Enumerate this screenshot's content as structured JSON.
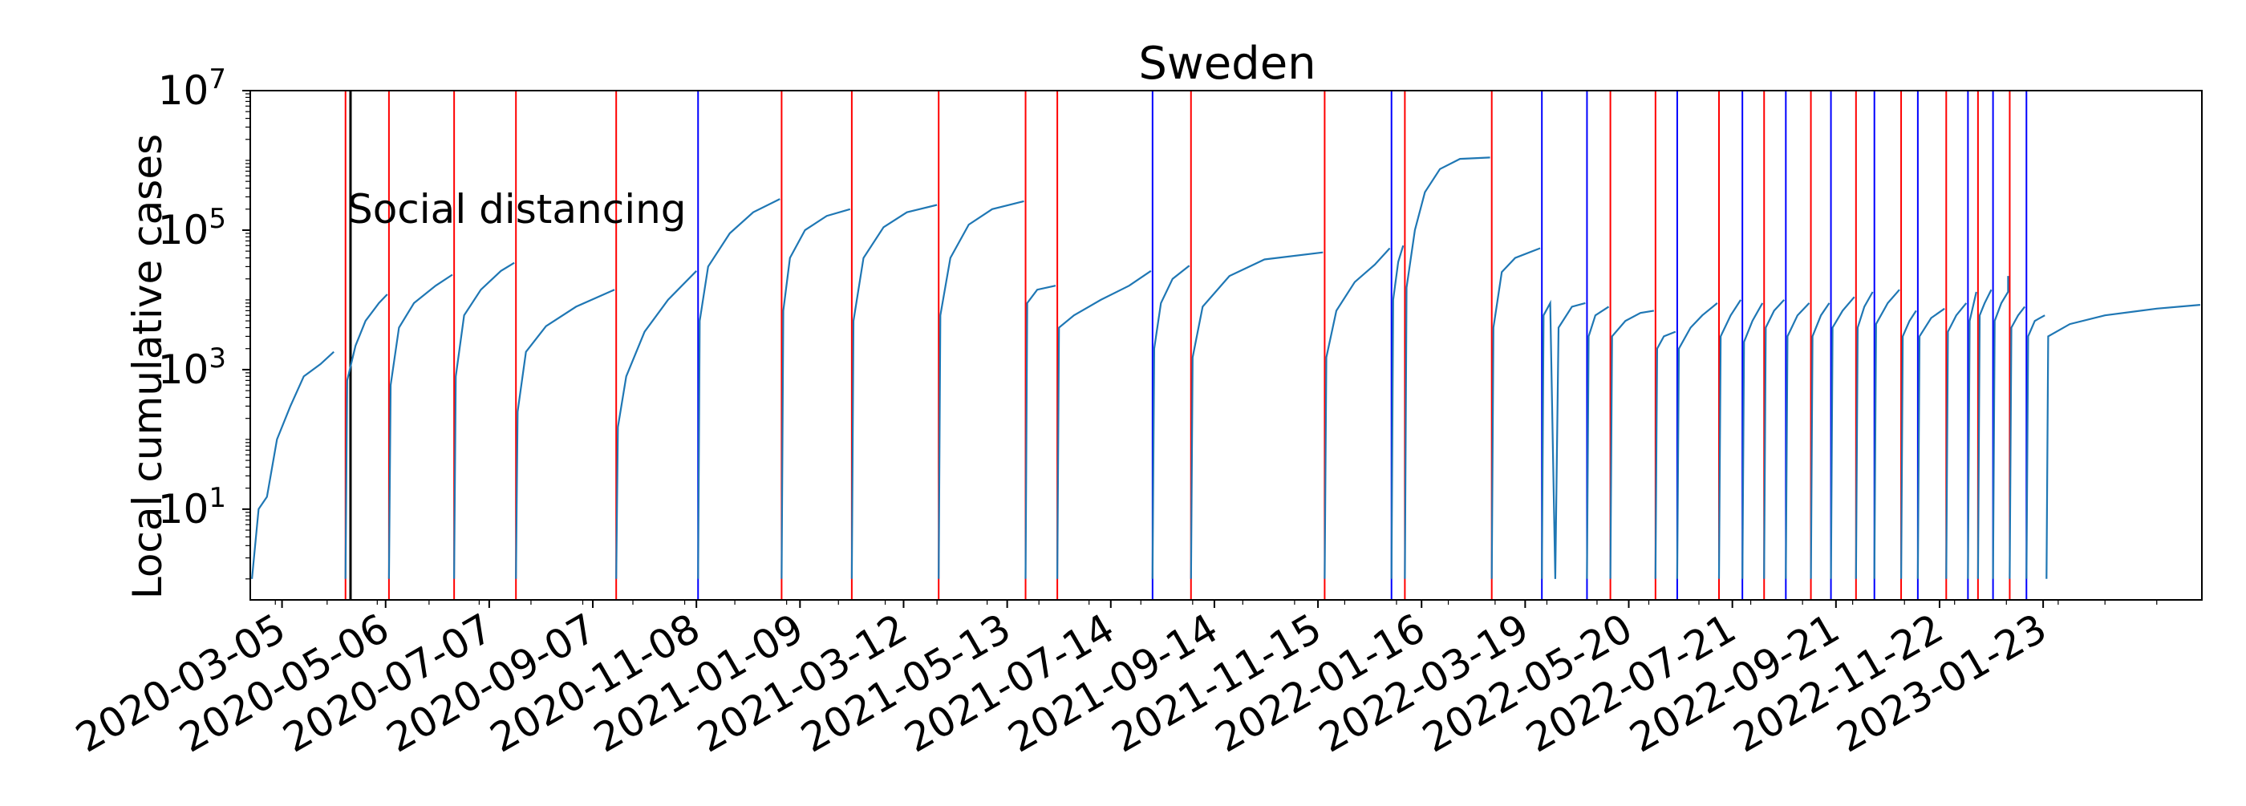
{
  "chart_data": {
    "type": "line",
    "title": "Sweden",
    "xlabel": "",
    "ylabel": "Local cumulative cases",
    "yscale": "log",
    "ylim": [
      0.5,
      10000000
    ],
    "xlim": [
      "2020-02-15",
      "2023-04-28"
    ],
    "y_ticks": [
      {
        "value": 10,
        "base": "10",
        "exp": "1"
      },
      {
        "value": 1000,
        "base": "10",
        "exp": "3"
      },
      {
        "value": 100000,
        "base": "10",
        "exp": "5"
      },
      {
        "value": 10000000,
        "base": "10",
        "exp": "7"
      }
    ],
    "x_tick_labels": [
      "2020-03-05",
      "2020-05-06",
      "2020-07-07",
      "2020-09-07",
      "2020-11-08",
      "2021-01-09",
      "2021-03-12",
      "2021-05-13",
      "2021-07-14",
      "2021-09-14",
      "2021-11-15",
      "2022-01-16",
      "2022-03-19",
      "2022-05-20",
      "2022-07-21",
      "2022-09-21",
      "2022-11-22",
      "2023-01-23"
    ],
    "grid": false,
    "annotations": [
      {
        "text": "Social distancing",
        "date": "2020-04-15",
        "color": "#000000"
      }
    ],
    "colors": {
      "series": "#1f77b4",
      "red_line": "#ff0000",
      "blue_line": "#0000ff",
      "event_line": "#000000"
    },
    "red_lines": [
      "2020-04-12",
      "2020-05-08",
      "2020-06-16",
      "2020-07-23",
      "2020-09-21",
      "2020-12-29",
      "2021-02-09",
      "2021-04-02",
      "2021-05-24",
      "2021-06-12",
      "2021-08-31",
      "2021-11-19",
      "2022-01-06",
      "2022-02-27",
      "2022-05-09",
      "2022-06-05",
      "2022-07-13",
      "2022-08-09",
      "2022-09-06",
      "2022-10-03",
      "2022-10-30",
      "2022-11-26",
      "2022-12-15",
      "2023-01-03"
    ],
    "blue_lines": [
      "2020-11-09",
      "2021-08-08",
      "2021-12-29",
      "2022-03-29",
      "2022-04-25",
      "2022-06-18",
      "2022-07-27",
      "2022-08-22",
      "2022-09-18",
      "2022-10-14",
      "2022-11-09",
      "2022-12-09",
      "2022-12-24",
      "2023-01-13"
    ],
    "event_lines": [
      "2020-04-15"
    ],
    "segments": [
      {
        "points": [
          [
            "2020-02-16",
            1
          ],
          [
            "2020-02-20",
            10
          ],
          [
            "2020-02-25",
            15
          ],
          [
            "2020-03-02",
            100
          ],
          [
            "2020-03-10",
            300
          ],
          [
            "2020-03-18",
            800
          ],
          [
            "2020-03-28",
            1200
          ],
          [
            "2020-04-05",
            1800
          ]
        ]
      },
      {
        "points": [
          [
            "2020-04-12",
            1
          ],
          [
            "2020-04-13",
            700
          ],
          [
            "2020-04-18",
            2200
          ],
          [
            "2020-04-24",
            5000
          ],
          [
            "2020-05-02",
            9000
          ],
          [
            "2020-05-07",
            12000
          ]
        ]
      },
      {
        "points": [
          [
            "2020-05-08",
            1
          ],
          [
            "2020-05-09",
            600
          ],
          [
            "2020-05-14",
            4000
          ],
          [
            "2020-05-23",
            9000
          ],
          [
            "2020-06-05",
            16000
          ],
          [
            "2020-06-15",
            23000
          ]
        ]
      },
      {
        "points": [
          [
            "2020-06-16",
            1
          ],
          [
            "2020-06-17",
            800
          ],
          [
            "2020-06-22",
            6000
          ],
          [
            "2020-07-02",
            14000
          ],
          [
            "2020-07-14",
            26000
          ],
          [
            "2020-07-22",
            34000
          ]
        ]
      },
      {
        "points": [
          [
            "2020-07-23",
            1
          ],
          [
            "2020-07-24",
            250
          ],
          [
            "2020-07-29",
            1800
          ],
          [
            "2020-08-10",
            4200
          ],
          [
            "2020-08-28",
            8000
          ],
          [
            "2020-09-20",
            14000
          ]
        ]
      },
      {
        "points": [
          [
            "2020-09-21",
            1
          ],
          [
            "2020-09-22",
            150
          ],
          [
            "2020-09-27",
            800
          ],
          [
            "2020-10-08",
            3500
          ],
          [
            "2020-10-22",
            10000
          ],
          [
            "2020-11-08",
            26000
          ]
        ]
      },
      {
        "points": [
          [
            "2020-11-09",
            1
          ],
          [
            "2020-11-10",
            5000
          ],
          [
            "2020-11-15",
            30000
          ],
          [
            "2020-11-28",
            90000
          ],
          [
            "2020-12-12",
            180000
          ],
          [
            "2020-12-28",
            280000
          ]
        ]
      },
      {
        "points": [
          [
            "2020-12-29",
            1
          ],
          [
            "2020-12-30",
            7000
          ],
          [
            "2021-01-03",
            40000
          ],
          [
            "2021-01-12",
            100000
          ],
          [
            "2021-01-25",
            160000
          ],
          [
            "2021-02-08",
            200000
          ]
        ]
      },
      {
        "points": [
          [
            "2021-02-09",
            1
          ],
          [
            "2021-02-10",
            5000
          ],
          [
            "2021-02-16",
            40000
          ],
          [
            "2021-02-28",
            110000
          ],
          [
            "2021-03-14",
            180000
          ],
          [
            "2021-04-01",
            230000
          ]
        ]
      },
      {
        "points": [
          [
            "2021-04-02",
            1
          ],
          [
            "2021-04-03",
            6000
          ],
          [
            "2021-04-09",
            40000
          ],
          [
            "2021-04-20",
            120000
          ],
          [
            "2021-05-04",
            200000
          ],
          [
            "2021-05-23",
            260000
          ]
        ]
      },
      {
        "points": [
          [
            "2021-05-24",
            1
          ],
          [
            "2021-05-25",
            9000
          ],
          [
            "2021-05-31",
            14000
          ],
          [
            "2021-06-11",
            16000
          ]
        ]
      },
      {
        "points": [
          [
            "2021-06-12",
            1
          ],
          [
            "2021-06-13",
            4000
          ],
          [
            "2021-06-22",
            6000
          ],
          [
            "2021-07-08",
            10000
          ],
          [
            "2021-07-25",
            16000
          ],
          [
            "2021-08-07",
            26000
          ]
        ]
      },
      {
        "points": [
          [
            "2021-08-08",
            1
          ],
          [
            "2021-08-09",
            2000
          ],
          [
            "2021-08-13",
            9000
          ],
          [
            "2021-08-20",
            20000
          ],
          [
            "2021-08-30",
            31000
          ]
        ]
      },
      {
        "points": [
          [
            "2021-08-31",
            1
          ],
          [
            "2021-09-01",
            1500
          ],
          [
            "2021-09-07",
            8000
          ],
          [
            "2021-09-23",
            22000
          ],
          [
            "2021-10-14",
            38000
          ],
          [
            "2021-11-18",
            48000
          ]
        ]
      },
      {
        "points": [
          [
            "2021-11-19",
            1
          ],
          [
            "2021-11-20",
            1500
          ],
          [
            "2021-11-26",
            7000
          ],
          [
            "2021-12-07",
            18000
          ],
          [
            "2021-12-19",
            32000
          ],
          [
            "2021-12-28",
            55000
          ]
        ]
      },
      {
        "points": [
          [
            "2021-12-29",
            1
          ],
          [
            "2021-12-30",
            10000
          ],
          [
            "2022-01-02",
            35000
          ],
          [
            "2022-01-05",
            60000
          ]
        ]
      },
      {
        "points": [
          [
            "2022-01-06",
            1
          ],
          [
            "2022-01-07",
            15000
          ],
          [
            "2022-01-12",
            100000
          ],
          [
            "2022-01-18",
            350000
          ],
          [
            "2022-01-27",
            750000
          ],
          [
            "2022-02-08",
            1050000
          ],
          [
            "2022-02-26",
            1100000
          ]
        ]
      },
      {
        "points": [
          [
            "2022-02-27",
            1
          ],
          [
            "2022-02-28",
            4000
          ],
          [
            "2022-03-05",
            25000
          ],
          [
            "2022-03-13",
            40000
          ],
          [
            "2022-03-28",
            55000
          ]
        ]
      },
      {
        "points": [
          [
            "2022-03-29",
            1
          ],
          [
            "2022-03-30",
            6000
          ],
          [
            "2022-04-03",
            9000
          ],
          [
            "2022-04-06",
            1
          ],
          [
            "2022-04-08",
            4000
          ],
          [
            "2022-04-16",
            8000
          ],
          [
            "2022-04-24",
            9000
          ]
        ]
      },
      {
        "points": [
          [
            "2022-04-25",
            1
          ],
          [
            "2022-04-26",
            3000
          ],
          [
            "2022-04-30",
            6000
          ],
          [
            "2022-05-08",
            8000
          ]
        ]
      },
      {
        "points": [
          [
            "2022-05-09",
            1
          ],
          [
            "2022-05-10",
            3000
          ],
          [
            "2022-05-18",
            5000
          ],
          [
            "2022-05-27",
            6500
          ],
          [
            "2022-06-04",
            7000
          ]
        ]
      },
      {
        "points": [
          [
            "2022-06-05",
            1
          ],
          [
            "2022-06-06",
            2000
          ],
          [
            "2022-06-10",
            3000
          ],
          [
            "2022-06-17",
            3500
          ]
        ]
      },
      {
        "points": [
          [
            "2022-06-18",
            1
          ],
          [
            "2022-06-19",
            2000
          ],
          [
            "2022-06-26",
            4000
          ],
          [
            "2022-07-03",
            6000
          ],
          [
            "2022-07-12",
            9000
          ]
        ]
      },
      {
        "points": [
          [
            "2022-07-13",
            1
          ],
          [
            "2022-07-14",
            3000
          ],
          [
            "2022-07-20",
            6000
          ],
          [
            "2022-07-26",
            10000
          ]
        ]
      },
      {
        "points": [
          [
            "2022-07-27",
            1
          ],
          [
            "2022-07-28",
            2500
          ],
          [
            "2022-08-02",
            5000
          ],
          [
            "2022-08-08",
            9000
          ]
        ]
      },
      {
        "points": [
          [
            "2022-08-09",
            1
          ],
          [
            "2022-08-10",
            4000
          ],
          [
            "2022-08-15",
            7000
          ],
          [
            "2022-08-21",
            10000
          ]
        ]
      },
      {
        "points": [
          [
            "2022-08-22",
            1
          ],
          [
            "2022-08-23",
            3000
          ],
          [
            "2022-08-29",
            6000
          ],
          [
            "2022-09-05",
            9000
          ]
        ]
      },
      {
        "points": [
          [
            "2022-09-06",
            1
          ],
          [
            "2022-09-07",
            3000
          ],
          [
            "2022-09-12",
            6000
          ],
          [
            "2022-09-17",
            9000
          ]
        ]
      },
      {
        "points": [
          [
            "2022-09-18",
            1
          ],
          [
            "2022-09-19",
            4000
          ],
          [
            "2022-09-25",
            7000
          ],
          [
            "2022-10-02",
            11000
          ]
        ]
      },
      {
        "points": [
          [
            "2022-10-03",
            1
          ],
          [
            "2022-10-04",
            4000
          ],
          [
            "2022-10-08",
            8000
          ],
          [
            "2022-10-13",
            13000
          ]
        ]
      },
      {
        "points": [
          [
            "2022-10-14",
            1
          ],
          [
            "2022-10-15",
            4500
          ],
          [
            "2022-10-22",
            9000
          ],
          [
            "2022-10-29",
            14000
          ]
        ]
      },
      {
        "points": [
          [
            "2022-10-30",
            1
          ],
          [
            "2022-10-31",
            3000
          ],
          [
            "2022-11-04",
            5000
          ],
          [
            "2022-11-08",
            7000
          ]
        ]
      },
      {
        "points": [
          [
            "2022-11-09",
            1
          ],
          [
            "2022-11-10",
            3000
          ],
          [
            "2022-11-17",
            5500
          ],
          [
            "2022-11-25",
            7500
          ]
        ]
      },
      {
        "points": [
          [
            "2022-11-26",
            1
          ],
          [
            "2022-11-27",
            3500
          ],
          [
            "2022-12-02",
            6000
          ],
          [
            "2022-12-08",
            9000
          ]
        ]
      },
      {
        "points": [
          [
            "2022-12-09",
            1
          ],
          [
            "2022-12-10",
            5000
          ],
          [
            "2022-12-12",
            8000
          ],
          [
            "2022-12-14",
            13000
          ]
        ]
      },
      {
        "points": [
          [
            "2022-12-15",
            1
          ],
          [
            "2022-12-16",
            6000
          ],
          [
            "2022-12-19",
            9000
          ],
          [
            "2022-12-23",
            14000
          ]
        ]
      },
      {
        "points": [
          [
            "2022-12-24",
            1
          ],
          [
            "2022-12-25",
            5000
          ],
          [
            "2022-12-29",
            9000
          ],
          [
            "2023-01-02",
            13000
          ],
          [
            "2023-01-02",
            22000
          ]
        ]
      },
      {
        "points": [
          [
            "2023-01-03",
            1
          ],
          [
            "2023-01-04",
            4000
          ],
          [
            "2023-01-08",
            6000
          ],
          [
            "2023-01-12",
            8000
          ]
        ]
      },
      {
        "points": [
          [
            "2023-01-13",
            1
          ],
          [
            "2023-01-14",
            3000
          ],
          [
            "2023-01-18",
            5000
          ],
          [
            "2023-01-24",
            6000
          ]
        ]
      },
      {
        "points": [
          [
            "2023-01-25",
            1
          ],
          [
            "2023-01-26",
            3000
          ],
          [
            "2023-02-08",
            4500
          ],
          [
            "2023-03-01",
            6000
          ],
          [
            "2023-04-01",
            7500
          ],
          [
            "2023-04-27",
            8500
          ]
        ]
      }
    ]
  }
}
